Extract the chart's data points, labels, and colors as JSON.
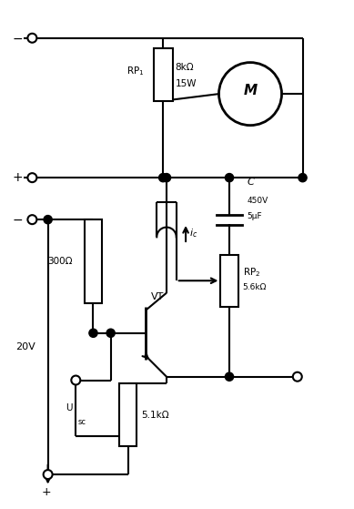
{
  "fig_width": 3.89,
  "fig_height": 5.59,
  "dpi": 100,
  "bg_color": "white",
  "line_color": "black",
  "lw": 1.5,
  "rp1_label": "RP$_1$",
  "rp2_label": "RP$_2$",
  "rp2_spec": "5.6kΩ",
  "r300_label": "300Ω",
  "r51_label": "5.1kΩ",
  "cap_c": "C",
  "cap_450": "450V",
  "cap_5uf": "5μF",
  "rp1_8k": "8kΩ",
  "rp1_15w": "15W",
  "vt_label": "VT",
  "motor_label": "M",
  "voltage_label": "20V",
  "usc_label": "U",
  "usc_sub": "sc",
  "ic_label": "$i_c$"
}
